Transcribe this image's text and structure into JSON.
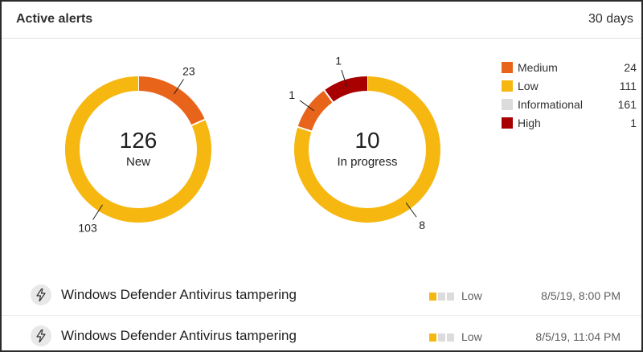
{
  "header": {
    "title": "Active alerts",
    "range": "30 days"
  },
  "colors": {
    "medium": "#e8641a",
    "low": "#f6b711",
    "informational": "#dcdcdc",
    "high": "#a80000",
    "ring_divider": "#ffffff"
  },
  "chart_data": [
    {
      "type": "pie",
      "variant": "donut",
      "center_value": "126",
      "center_label": "New",
      "slices": [
        {
          "name": "Medium",
          "value": 23,
          "label": "23"
        },
        {
          "name": "Low",
          "value": 103,
          "label": "103"
        }
      ]
    },
    {
      "type": "pie",
      "variant": "donut",
      "center_value": "10",
      "center_label": "In progress",
      "slices": [
        {
          "name": "Low",
          "value": 8,
          "label": "8"
        },
        {
          "name": "Medium",
          "value": 1,
          "label": "1"
        },
        {
          "name": "High",
          "value": 1,
          "label": "1"
        }
      ]
    }
  ],
  "legend": [
    {
      "name": "Medium",
      "value": "24",
      "color_key": "medium"
    },
    {
      "name": "Low",
      "value": "111",
      "color_key": "low"
    },
    {
      "name": "Informational",
      "value": "161",
      "color_key": "informational"
    },
    {
      "name": "High",
      "value": "1",
      "color_key": "high"
    }
  ],
  "alerts": [
    {
      "icon": "lightning-icon",
      "title": "Windows Defender Antivirus tampering",
      "severity": "Low",
      "severity_level": 1,
      "severity_max": 3,
      "time": "8/5/19, 8:00 PM"
    },
    {
      "icon": "lightning-icon",
      "title": "Windows Defender Antivirus tampering",
      "severity": "Low",
      "severity_level": 1,
      "severity_max": 3,
      "time": "8/5/19, 11:04 PM"
    }
  ]
}
